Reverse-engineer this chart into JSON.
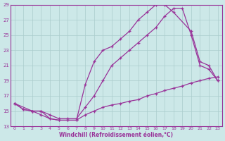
{
  "xlabel": "Windchill (Refroidissement éolien,°C)",
  "bg_color": "#cce8e8",
  "grid_color": "#aacccc",
  "line_color": "#993399",
  "xlim": [
    -0.5,
    23.5
  ],
  "ylim": [
    13,
    29
  ],
  "xticks": [
    0,
    1,
    2,
    3,
    4,
    5,
    6,
    7,
    8,
    9,
    10,
    11,
    12,
    13,
    14,
    15,
    16,
    17,
    18,
    19,
    20,
    21,
    22,
    23
  ],
  "yticks": [
    13,
    15,
    17,
    19,
    21,
    23,
    25,
    27,
    29
  ],
  "curve_bottom_x": [
    0,
    1,
    2,
    3,
    4,
    5,
    6,
    7,
    8,
    9,
    10,
    11,
    12,
    13,
    14,
    15,
    16,
    17,
    18,
    19,
    20,
    21,
    22,
    23
  ],
  "curve_bottom_y": [
    16,
    15.2,
    15,
    14.5,
    14,
    13.8,
    13.8,
    13.8,
    14.5,
    15,
    15.5,
    15.8,
    16,
    16.3,
    16.5,
    17,
    17.3,
    17.7,
    18,
    18.3,
    18.7,
    19,
    19.3,
    19.5
  ],
  "curve_mid_x": [
    0,
    1,
    2,
    3,
    4,
    5,
    6,
    7,
    8,
    9,
    10,
    11,
    12,
    13,
    14,
    15,
    16,
    17,
    18,
    19,
    20,
    21,
    22,
    23
  ],
  "curve_mid_y": [
    16,
    15.2,
    15,
    15,
    14.5,
    14,
    14,
    14,
    15.5,
    17,
    19,
    21,
    22,
    23,
    24,
    25,
    26,
    27.5,
    28.5,
    28.5,
    25,
    21,
    20.5,
    19
  ],
  "curve_top_x": [
    0,
    2,
    3,
    4,
    5,
    6,
    7,
    8,
    9,
    10,
    11,
    12,
    13,
    14,
    15,
    16,
    17,
    18,
    20,
    21,
    22,
    23
  ],
  "curve_top_y": [
    16,
    15,
    15,
    14,
    13.8,
    13.8,
    13.8,
    18.5,
    21.5,
    23,
    23.5,
    24.5,
    25.5,
    27,
    28,
    29,
    29,
    28,
    25.5,
    21.5,
    21,
    19
  ]
}
